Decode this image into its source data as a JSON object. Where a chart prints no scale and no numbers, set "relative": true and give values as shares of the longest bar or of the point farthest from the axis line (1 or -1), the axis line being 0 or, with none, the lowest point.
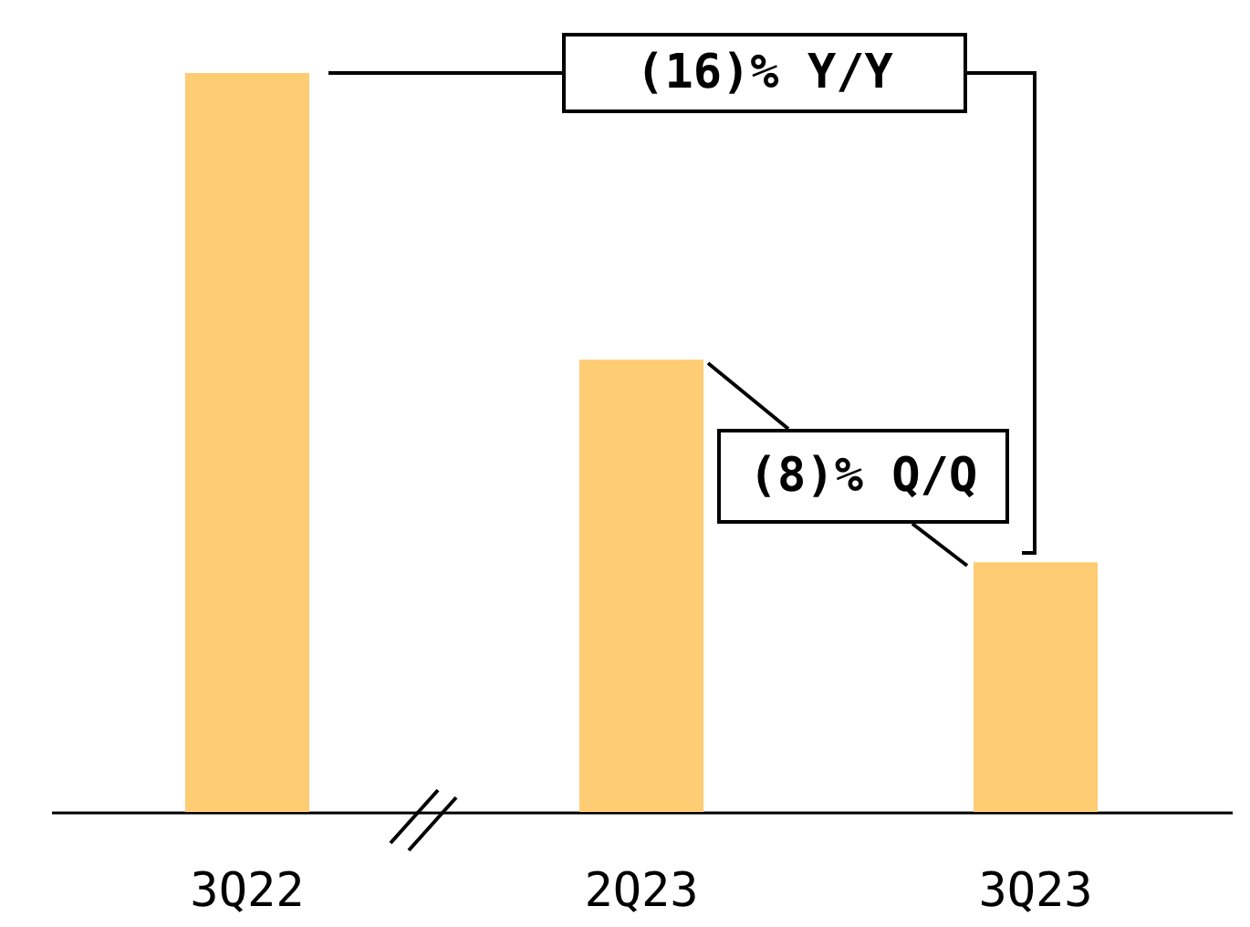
{
  "chart_data": {
    "type": "bar",
    "categories": [
      "3Q22",
      "2Q23",
      "3Q23"
    ],
    "values": [
      1,
      0.612,
      0.338
    ],
    "color": "#fdcc73",
    "relative": true,
    "grid": false,
    "annotations": [
      "(16)% Y/Y",
      "(8)% Q/Q"
    ]
  }
}
